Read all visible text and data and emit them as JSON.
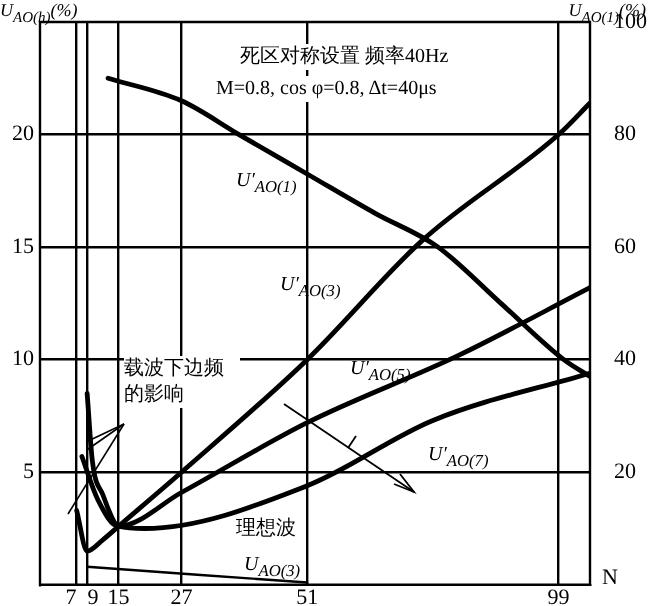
{
  "chart_data": {
    "type": "line",
    "xlabel": "N",
    "ylabel": "U$_{AO(h)}$(%)",
    "y2label": "U$_{AO(1)}$(%)",
    "annotations": [
      "死区对称设置  频率40Hz",
      "M=0.8, cos φ=0.8, Δt=40μs",
      {
        "text": "载波下边频的影响",
        "x": 9,
        "y": 6
      },
      "理想波"
    ],
    "xlim": [
      0,
      105
    ],
    "xticks": [
      7,
      9,
      15,
      27,
      51,
      99
    ],
    "ylim": [
      0,
      25
    ],
    "yticks": [
      5,
      10,
      15,
      20
    ],
    "y2lim": [
      0,
      100
    ],
    "y2ticks": [
      20,
      40,
      60,
      80,
      100
    ],
    "grid": true,
    "legend": false,
    "marker": "none",
    "line_style": "solid",
    "series": [
      {
        "name": "U′$_{AO(1)}$",
        "color": "#000000",
        "axis": "y2",
        "x": [
          13,
          27,
          38,
          51,
          64,
          76,
          88,
          100,
          105
        ],
        "values": [
          90,
          86,
          80,
          73,
          66,
          60,
          50,
          40,
          37
        ]
      },
      {
        "name": "U′$_{AO(3)}$",
        "color": "#000000",
        "x": [
          7,
          9,
          12,
          15,
          27,
          51,
          73,
          99,
          105
        ],
        "values": [
          3.3,
          1.5,
          2,
          2.6,
          5,
          10,
          15.3,
          20,
          21.4
        ]
      },
      {
        "name": "U′$_{AO(5)}$",
        "color": "#000000",
        "x": [
          8,
          11,
          15,
          27,
          51,
          80,
          105
        ],
        "values": [
          5.7,
          3.8,
          2.6,
          4.1,
          7.2,
          10.2,
          13.2
        ]
      },
      {
        "name": "U′$_{AO(7)}$",
        "color": "#000000",
        "x": [
          9,
          10,
          12,
          15,
          20,
          51,
          75,
          105
        ],
        "values": [
          8.5,
          5.5,
          4,
          2.6,
          2.5,
          4.4,
          7.3,
          9.4
        ]
      },
      {
        "name": "U$_{AO(3)}$",
        "color": "#000000",
        "x": [
          9,
          51
        ],
        "values": [
          0.8,
          0.1
        ]
      }
    ]
  }
}
